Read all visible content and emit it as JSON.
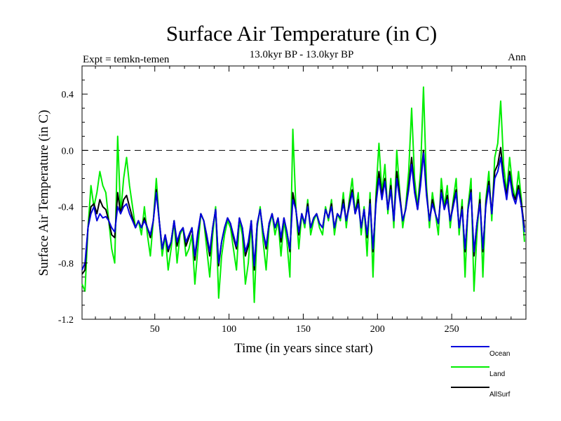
{
  "chart_data": {
    "type": "line",
    "title": "Surface Air Temperature (in C)",
    "subtitle": "13.0kyr BP - 13.0kyr BP",
    "experiment_label": "Expt = temkn-temen",
    "period_label": "Ann",
    "xlabel": "Time (in years since start)",
    "ylabel": "Surface Air Temperature (in C)",
    "xlim": [
      1,
      300
    ],
    "ylim": [
      -1.2,
      0.6
    ],
    "xticks": [
      50,
      100,
      150,
      200,
      250
    ],
    "xtick_labels": [
      "50",
      "100",
      "150",
      "200",
      "250"
    ],
    "yticks": [
      -1.2,
      -0.8,
      -0.4,
      0.0,
      0.4
    ],
    "ytick_labels": [
      "-1.2",
      "-0.8",
      "-0.4",
      "0.0",
      "0.4"
    ],
    "reference_line": 0.0,
    "legend_position": "bottom-right",
    "series": [
      {
        "name": "Land",
        "color": "#00ee00",
        "x": [
          1,
          3,
          5,
          7,
          9,
          11,
          13,
          15,
          17,
          19,
          21,
          23,
          25,
          27,
          29,
          31,
          33,
          35,
          37,
          39,
          41,
          43,
          45,
          47,
          49,
          51,
          53,
          55,
          57,
          59,
          61,
          63,
          65,
          67,
          69,
          71,
          73,
          75,
          77,
          79,
          81,
          83,
          85,
          87,
          89,
          91,
          93,
          95,
          97,
          99,
          101,
          103,
          105,
          107,
          109,
          111,
          113,
          115,
          117,
          119,
          121,
          123,
          125,
          127,
          129,
          131,
          133,
          135,
          137,
          139,
          141,
          143,
          145,
          147,
          149,
          151,
          153,
          155,
          157,
          159,
          161,
          163,
          165,
          167,
          169,
          171,
          173,
          175,
          177,
          179,
          181,
          183,
          185,
          187,
          189,
          191,
          193,
          195,
          197,
          199,
          201,
          203,
          205,
          207,
          209,
          211,
          213,
          215,
          217,
          219,
          221,
          223,
          225,
          227,
          229,
          231,
          233,
          235,
          237,
          239,
          241,
          243,
          245,
          247,
          249,
          251,
          253,
          255,
          257,
          259,
          261,
          263,
          265,
          267,
          269,
          271,
          273,
          275,
          277,
          279,
          281,
          283,
          285,
          287,
          289,
          291,
          293,
          295,
          297,
          299
        ],
        "y": [
          -0.95,
          -1.0,
          -0.55,
          -0.25,
          -0.4,
          -0.3,
          -0.15,
          -0.25,
          -0.3,
          -0.5,
          -0.7,
          -0.8,
          0.1,
          -0.45,
          -0.2,
          -0.05,
          -0.25,
          -0.4,
          -0.55,
          -0.5,
          -0.6,
          -0.4,
          -0.6,
          -0.75,
          -0.5,
          -0.2,
          -0.5,
          -0.75,
          -0.6,
          -0.85,
          -0.7,
          -0.5,
          -0.8,
          -0.6,
          -0.55,
          -0.75,
          -0.7,
          -0.6,
          -0.95,
          -0.7,
          -0.45,
          -0.5,
          -0.7,
          -0.9,
          -0.6,
          -0.4,
          -1.05,
          -0.75,
          -0.6,
          -0.5,
          -0.55,
          -0.7,
          -0.85,
          -0.5,
          -0.6,
          -0.95,
          -0.8,
          -0.5,
          -1.08,
          -0.55,
          -0.4,
          -0.65,
          -0.85,
          -0.55,
          -0.45,
          -0.6,
          -0.5,
          -0.75,
          -0.5,
          -0.65,
          -0.9,
          0.15,
          -0.4,
          -0.7,
          -0.45,
          -0.55,
          -0.35,
          -0.6,
          -0.5,
          -0.45,
          -0.55,
          -0.6,
          -0.4,
          -0.5,
          -0.35,
          -0.6,
          -0.45,
          -0.5,
          -0.3,
          -0.55,
          -0.35,
          -0.2,
          -0.45,
          -0.3,
          -0.6,
          -0.4,
          -0.75,
          -0.3,
          -0.9,
          -0.3,
          0.05,
          -0.3,
          -0.1,
          -0.45,
          -0.2,
          -0.55,
          0.0,
          -0.3,
          -0.55,
          -0.4,
          -0.15,
          0.3,
          -0.2,
          -0.4,
          -0.15,
          0.45,
          -0.25,
          -0.55,
          -0.3,
          -0.45,
          -0.6,
          -0.2,
          -0.4,
          -0.25,
          -0.55,
          -0.35,
          -0.2,
          -0.6,
          -0.35,
          -0.9,
          -0.4,
          -0.2,
          -1.0,
          -0.6,
          -0.3,
          -0.9,
          -0.35,
          -0.15,
          -0.5,
          -0.05,
          0.05,
          0.35,
          -0.1,
          -0.3,
          -0.05,
          -0.25,
          -0.35,
          -0.15,
          -0.35,
          -0.65
        ]
      },
      {
        "name": "AllSurf",
        "color": "#000000",
        "x": [
          1,
          3,
          5,
          7,
          9,
          11,
          13,
          15,
          17,
          19,
          21,
          23,
          25,
          27,
          29,
          31,
          33,
          35,
          37,
          39,
          41,
          43,
          45,
          47,
          49,
          51,
          53,
          55,
          57,
          59,
          61,
          63,
          65,
          67,
          69,
          71,
          73,
          75,
          77,
          79,
          81,
          83,
          85,
          87,
          89,
          91,
          93,
          95,
          97,
          99,
          101,
          103,
          105,
          107,
          109,
          111,
          113,
          115,
          117,
          119,
          121,
          123,
          125,
          127,
          129,
          131,
          133,
          135,
          137,
          139,
          141,
          143,
          145,
          147,
          149,
          151,
          153,
          155,
          157,
          159,
          161,
          163,
          165,
          167,
          169,
          171,
          173,
          175,
          177,
          179,
          181,
          183,
          185,
          187,
          189,
          191,
          193,
          195,
          197,
          199,
          201,
          203,
          205,
          207,
          209,
          211,
          213,
          215,
          217,
          219,
          221,
          223,
          225,
          227,
          229,
          231,
          233,
          235,
          237,
          239,
          241,
          243,
          245,
          247,
          249,
          251,
          253,
          255,
          257,
          259,
          261,
          263,
          265,
          267,
          269,
          271,
          273,
          275,
          277,
          279,
          281,
          283,
          285,
          287,
          289,
          291,
          293,
          295,
          297,
          299
        ],
        "y": [
          -0.88,
          -0.85,
          -0.55,
          -0.4,
          -0.38,
          -0.45,
          -0.35,
          -0.4,
          -0.42,
          -0.5,
          -0.6,
          -0.62,
          -0.3,
          -0.45,
          -0.35,
          -0.32,
          -0.4,
          -0.48,
          -0.55,
          -0.5,
          -0.55,
          -0.48,
          -0.55,
          -0.62,
          -0.5,
          -0.28,
          -0.5,
          -0.7,
          -0.6,
          -0.72,
          -0.65,
          -0.5,
          -0.68,
          -0.58,
          -0.55,
          -0.68,
          -0.62,
          -0.55,
          -0.78,
          -0.6,
          -0.45,
          -0.5,
          -0.62,
          -0.75,
          -0.55,
          -0.42,
          -0.82,
          -0.65,
          -0.55,
          -0.48,
          -0.52,
          -0.62,
          -0.7,
          -0.48,
          -0.55,
          -0.75,
          -0.68,
          -0.5,
          -0.85,
          -0.52,
          -0.42,
          -0.58,
          -0.7,
          -0.52,
          -0.45,
          -0.55,
          -0.48,
          -0.65,
          -0.48,
          -0.58,
          -0.72,
          -0.3,
          -0.42,
          -0.6,
          -0.45,
          -0.52,
          -0.38,
          -0.55,
          -0.48,
          -0.45,
          -0.52,
          -0.55,
          -0.42,
          -0.48,
          -0.38,
          -0.55,
          -0.45,
          -0.48,
          -0.35,
          -0.5,
          -0.38,
          -0.28,
          -0.45,
          -0.35,
          -0.55,
          -0.42,
          -0.62,
          -0.35,
          -0.72,
          -0.35,
          -0.15,
          -0.32,
          -0.2,
          -0.42,
          -0.25,
          -0.5,
          -0.15,
          -0.32,
          -0.5,
          -0.42,
          -0.25,
          -0.05,
          -0.28,
          -0.42,
          -0.22,
          0.0,
          -0.3,
          -0.5,
          -0.35,
          -0.45,
          -0.52,
          -0.28,
          -0.42,
          -0.32,
          -0.5,
          -0.38,
          -0.28,
          -0.55,
          -0.4,
          -0.72,
          -0.42,
          -0.28,
          -0.75,
          -0.52,
          -0.35,
          -0.72,
          -0.38,
          -0.22,
          -0.45,
          -0.15,
          -0.1,
          0.02,
          -0.2,
          -0.32,
          -0.15,
          -0.3,
          -0.35,
          -0.25,
          -0.38,
          -0.55
        ]
      },
      {
        "name": "Ocean",
        "color": "#0000dd",
        "x": [
          1,
          3,
          5,
          7,
          9,
          11,
          13,
          15,
          17,
          19,
          21,
          23,
          25,
          27,
          29,
          31,
          33,
          35,
          37,
          39,
          41,
          43,
          45,
          47,
          49,
          51,
          53,
          55,
          57,
          59,
          61,
          63,
          65,
          67,
          69,
          71,
          73,
          75,
          77,
          79,
          81,
          83,
          85,
          87,
          89,
          91,
          93,
          95,
          97,
          99,
          101,
          103,
          105,
          107,
          109,
          111,
          113,
          115,
          117,
          119,
          121,
          123,
          125,
          127,
          129,
          131,
          133,
          135,
          137,
          139,
          141,
          143,
          145,
          147,
          149,
          151,
          153,
          155,
          157,
          159,
          161,
          163,
          165,
          167,
          169,
          171,
          173,
          175,
          177,
          179,
          181,
          183,
          185,
          187,
          189,
          191,
          193,
          195,
          197,
          199,
          201,
          203,
          205,
          207,
          209,
          211,
          213,
          215,
          217,
          219,
          221,
          223,
          225,
          227,
          229,
          231,
          233,
          235,
          237,
          239,
          241,
          243,
          245,
          247,
          249,
          251,
          253,
          255,
          257,
          259,
          261,
          263,
          265,
          267,
          269,
          271,
          273,
          275,
          277,
          279,
          281,
          283,
          285,
          287,
          289,
          291,
          293,
          295,
          297,
          299
        ],
        "y": [
          -0.85,
          -0.8,
          -0.55,
          -0.45,
          -0.4,
          -0.5,
          -0.45,
          -0.48,
          -0.47,
          -0.5,
          -0.55,
          -0.58,
          -0.4,
          -0.45,
          -0.4,
          -0.38,
          -0.45,
          -0.5,
          -0.55,
          -0.5,
          -0.55,
          -0.5,
          -0.55,
          -0.6,
          -0.5,
          -0.3,
          -0.5,
          -0.7,
          -0.6,
          -0.7,
          -0.65,
          -0.5,
          -0.65,
          -0.58,
          -0.55,
          -0.65,
          -0.6,
          -0.55,
          -0.75,
          -0.58,
          -0.45,
          -0.5,
          -0.6,
          -0.72,
          -0.55,
          -0.42,
          -0.8,
          -0.65,
          -0.55,
          -0.48,
          -0.52,
          -0.6,
          -0.68,
          -0.48,
          -0.55,
          -0.72,
          -0.65,
          -0.5,
          -0.82,
          -0.52,
          -0.42,
          -0.58,
          -0.68,
          -0.52,
          -0.45,
          -0.55,
          -0.48,
          -0.62,
          -0.48,
          -0.58,
          -0.7,
          -0.35,
          -0.42,
          -0.58,
          -0.45,
          -0.52,
          -0.4,
          -0.55,
          -0.48,
          -0.45,
          -0.52,
          -0.55,
          -0.42,
          -0.48,
          -0.4,
          -0.55,
          -0.45,
          -0.48,
          -0.38,
          -0.5,
          -0.4,
          -0.3,
          -0.45,
          -0.38,
          -0.55,
          -0.42,
          -0.6,
          -0.38,
          -0.7,
          -0.38,
          -0.2,
          -0.35,
          -0.22,
          -0.42,
          -0.28,
          -0.5,
          -0.2,
          -0.35,
          -0.5,
          -0.42,
          -0.28,
          -0.1,
          -0.3,
          -0.42,
          -0.25,
          -0.02,
          -0.32,
          -0.5,
          -0.38,
          -0.45,
          -0.52,
          -0.3,
          -0.42,
          -0.35,
          -0.5,
          -0.4,
          -0.3,
          -0.55,
          -0.42,
          -0.7,
          -0.42,
          -0.3,
          -0.72,
          -0.52,
          -0.38,
          -0.7,
          -0.4,
          -0.25,
          -0.45,
          -0.2,
          -0.15,
          -0.05,
          -0.22,
          -0.35,
          -0.18,
          -0.32,
          -0.38,
          -0.28,
          -0.4,
          -0.58
        ]
      }
    ]
  }
}
